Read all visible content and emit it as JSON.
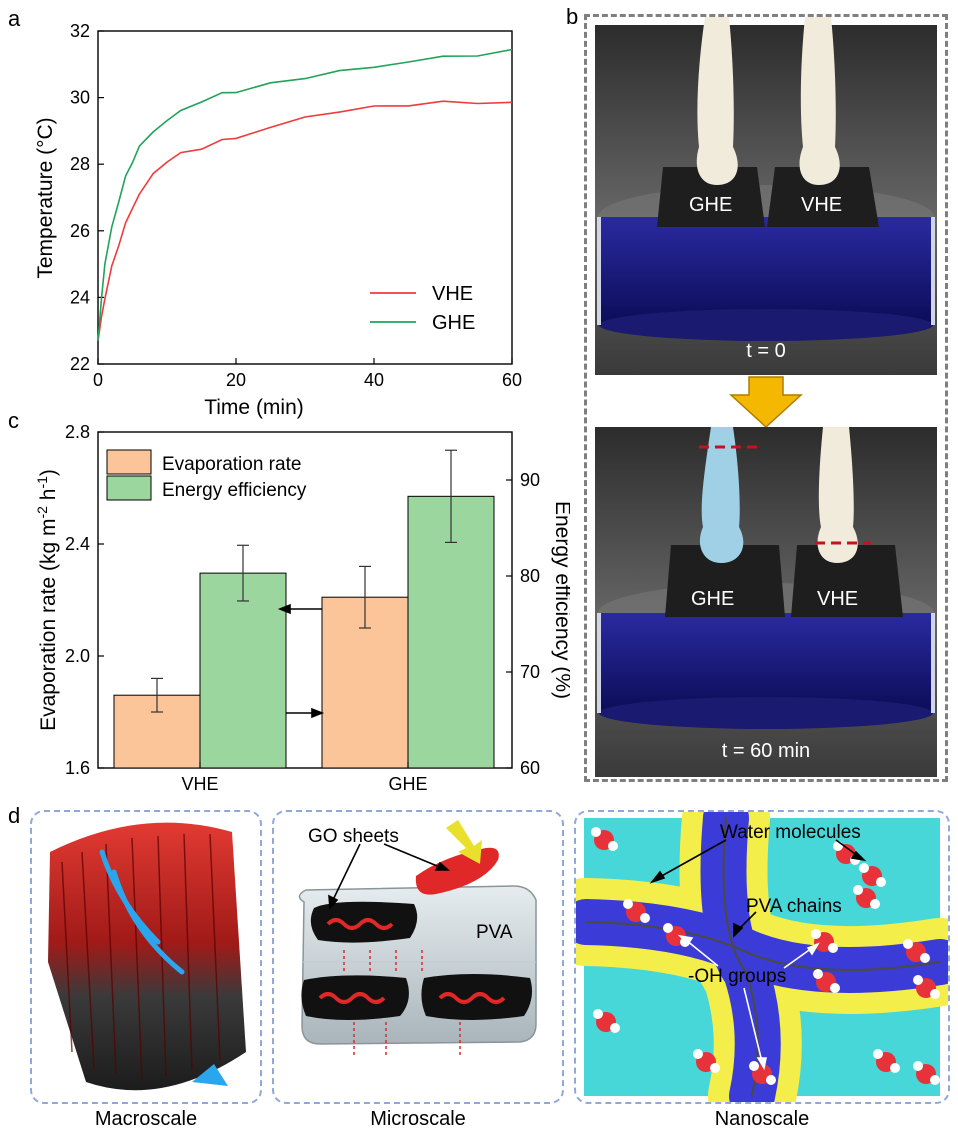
{
  "panel_labels": {
    "a": "a",
    "b": "b",
    "c": "c",
    "d": "d"
  },
  "chart_data": [
    {
      "type": "line",
      "panel": "a",
      "xlabel": "Time (min)",
      "ylabel": "Temperature (°C)",
      "xlim": [
        0,
        60
      ],
      "ylim": [
        22,
        32
      ],
      "x_ticks": [
        0,
        20,
        40,
        60
      ],
      "y_ticks": [
        22,
        24,
        26,
        28,
        30,
        32
      ],
      "legend_position": "bottom-right",
      "series": [
        {
          "name": "VHE",
          "color": "#ee3b3b",
          "x": [
            0,
            0.5,
            1,
            2,
            3,
            4,
            5,
            6,
            8,
            10,
            12,
            15,
            18,
            20,
            25,
            30,
            35,
            40,
            45,
            50,
            55,
            60
          ],
          "y": [
            22.7,
            23.4,
            24.0,
            24.9,
            25.6,
            26.2,
            26.7,
            27.1,
            27.7,
            28.1,
            28.3,
            28.5,
            28.7,
            28.8,
            29.1,
            29.4,
            29.6,
            29.7,
            29.8,
            29.85,
            29.85,
            29.85
          ]
        },
        {
          "name": "GHE",
          "color": "#21a35a",
          "x": [
            0,
            0.5,
            1,
            2,
            3,
            4,
            5,
            6,
            8,
            10,
            12,
            15,
            18,
            20,
            25,
            30,
            35,
            40,
            45,
            50,
            55,
            60
          ],
          "y": [
            22.7,
            24.0,
            25.0,
            26.1,
            26.9,
            27.6,
            28.1,
            28.5,
            29.0,
            29.3,
            29.6,
            29.9,
            30.1,
            30.2,
            30.4,
            30.6,
            30.8,
            30.9,
            31.1,
            31.2,
            31.3,
            31.4
          ]
        }
      ]
    },
    {
      "type": "bar",
      "panel": "c",
      "categories": [
        "VHE",
        "GHE"
      ],
      "ylabel": "Evaporation rate (kg m",
      "ylabel_sup1": "-2",
      "ylabel_mid": " h",
      "ylabel_sup2": "-1",
      "ylabel_end": ")",
      "y2label": "Energy efficiency (%)",
      "ylim": [
        1.6,
        2.8
      ],
      "y_ticks": [
        1.6,
        2.0,
        2.4,
        2.8
      ],
      "y2lim": [
        60,
        95
      ],
      "y2_ticks": [
        60,
        70,
        80,
        90
      ],
      "legend_position": "top-left",
      "series": [
        {
          "name": "Evaporation rate",
          "axis": "left",
          "color": "#fbc499",
          "values": [
            1.86,
            2.21
          ],
          "errors": [
            0.06,
            0.11
          ]
        },
        {
          "name": "Energy efficiency",
          "axis": "right",
          "color": "#9bd69e",
          "values": [
            80.3,
            88.3
          ],
          "errors": [
            2.9,
            4.8
          ]
        }
      ]
    }
  ],
  "photos": {
    "top_labels": [
      "GHE",
      "VHE"
    ],
    "top_caption": "t = 0",
    "bottom_labels": [
      "GHE",
      "VHE"
    ],
    "bottom_caption": "t = 60 min"
  },
  "schematic": {
    "captions": [
      "Macroscale",
      "Microscale",
      "Nanoscale"
    ],
    "micro": {
      "go_label": "GO sheets",
      "pva_label": "PVA"
    },
    "nano": {
      "water_label": "Water molecules",
      "pva_chains_label": "PVA chains",
      "oh_label": "-OH groups"
    }
  },
  "colors": {
    "vhe": "#ee3b3b",
    "ghe": "#21a35a",
    "dashed_border": "#7f7f7f",
    "schematic_border": "#8fa8d8",
    "arrow": "#f5b800"
  }
}
